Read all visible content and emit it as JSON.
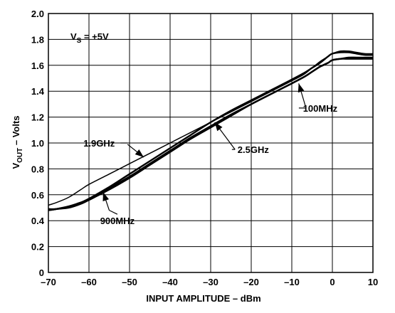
{
  "chart_data": {
    "type": "line",
    "xlabel": "INPUT AMPLITUDE – dBm",
    "ylabel": {
      "main": "V",
      "sub": "OUT",
      "rest": " – Volts"
    },
    "annotation": {
      "main": "V",
      "sub": "S",
      "rest": " = +5V"
    },
    "xlim": [
      -70,
      10
    ],
    "ylim": [
      0,
      2.0
    ],
    "x_ticks": [
      -70,
      -60,
      -50,
      -40,
      -30,
      -20,
      -10,
      0,
      10
    ],
    "x_tick_labels": [
      "–70",
      "–60",
      "–50",
      "–40",
      "–30",
      "–20",
      "–10",
      "0",
      "10"
    ],
    "y_ticks": [
      0,
      0.2,
      0.4,
      0.6,
      0.8,
      1.0,
      1.2,
      1.4,
      1.6,
      1.8,
      2.0
    ],
    "y_tick_labels": [
      "0",
      "0.2",
      "0.4",
      "0.6",
      "0.8",
      "1.0",
      "1.2",
      "1.4",
      "1.6",
      "1.8",
      "2.0"
    ],
    "grid": true,
    "series": [
      {
        "name": "1.9GHz",
        "x": [
          -70,
          -68,
          -65,
          -62,
          -60,
          -55,
          -50,
          -45,
          -40,
          -35,
          -30,
          -25,
          -20,
          -15,
          -10,
          -7,
          -5,
          -3,
          -1,
          0,
          2,
          4,
          6,
          8,
          10
        ],
        "y": [
          0.52,
          0.54,
          0.58,
          0.64,
          0.68,
          0.76,
          0.84,
          0.92,
          1.0,
          1.08,
          1.16,
          1.24,
          1.32,
          1.4,
          1.48,
          1.53,
          1.58,
          1.63,
          1.67,
          1.69,
          1.71,
          1.71,
          1.7,
          1.69,
          1.69
        ]
      },
      {
        "name": "900MHz",
        "x": [
          -70,
          -68,
          -65,
          -62,
          -60,
          -55,
          -50,
          -45,
          -40,
          -35,
          -30,
          -25,
          -20,
          -15,
          -10,
          -7,
          -5,
          -3,
          -1,
          0,
          2,
          4,
          6,
          8,
          10
        ],
        "y": [
          0.49,
          0.49,
          0.51,
          0.54,
          0.57,
          0.66,
          0.76,
          0.86,
          0.96,
          1.06,
          1.16,
          1.25,
          1.33,
          1.41,
          1.49,
          1.54,
          1.58,
          1.62,
          1.67,
          1.69,
          1.7,
          1.7,
          1.69,
          1.68,
          1.68
        ]
      },
      {
        "name": "2.5GHz",
        "x": [
          -70,
          -68,
          -65,
          -62,
          -60,
          -55,
          -50,
          -45,
          -40,
          -35,
          -30,
          -25,
          -20,
          -15,
          -10,
          -7,
          -5,
          -3,
          -1,
          0,
          2,
          4,
          6,
          8,
          10
        ],
        "y": [
          0.48,
          0.49,
          0.5,
          0.53,
          0.56,
          0.64,
          0.73,
          0.83,
          0.93,
          1.03,
          1.12,
          1.21,
          1.3,
          1.38,
          1.46,
          1.51,
          1.55,
          1.59,
          1.62,
          1.64,
          1.65,
          1.65,
          1.65,
          1.65,
          1.65
        ]
      },
      {
        "name": "100MHz",
        "x": [
          -70,
          -68,
          -65,
          -62,
          -60,
          -55,
          -50,
          -45,
          -40,
          -35,
          -30,
          -25,
          -20,
          -15,
          -10,
          -7,
          -5,
          -3,
          -1,
          0,
          2,
          4,
          6,
          8,
          10
        ],
        "y": [
          0.48,
          0.49,
          0.51,
          0.54,
          0.56,
          0.65,
          0.74,
          0.84,
          0.94,
          1.04,
          1.13,
          1.22,
          1.3,
          1.38,
          1.46,
          1.51,
          1.55,
          1.59,
          1.62,
          1.64,
          1.65,
          1.66,
          1.66,
          1.66,
          1.66
        ]
      }
    ],
    "callouts": [
      {
        "label": "1.9GHz",
        "text_at": [
          -57.5,
          1.0
        ],
        "line_to": [
          -50.5,
          1.0
        ],
        "arrow_from": [
          -50.5,
          0.99
        ],
        "arrow_to": [
          -46.5,
          0.89
        ]
      },
      {
        "label": "900MHz",
        "text_at": [
          -53,
          0.4
        ],
        "line_to": [
          -55,
          0.48
        ],
        "arrow_from": [
          -55,
          0.48
        ],
        "arrow_to": [
          -56.5,
          0.62
        ]
      },
      {
        "label": "2.5GHz",
        "text_at": [
          -19.5,
          0.95
        ],
        "line_to": [
          -24,
          0.95
        ],
        "arrow_from": [
          -24,
          0.95
        ],
        "arrow_to": [
          -29,
          1.16
        ]
      },
      {
        "label": "100MHz",
        "text_at": [
          -3,
          1.27
        ],
        "line_to": [
          -6.5,
          1.27
        ],
        "arrow_from": [
          -6.5,
          1.27
        ],
        "arrow_to": [
          -8.3,
          1.46
        ]
      }
    ]
  }
}
